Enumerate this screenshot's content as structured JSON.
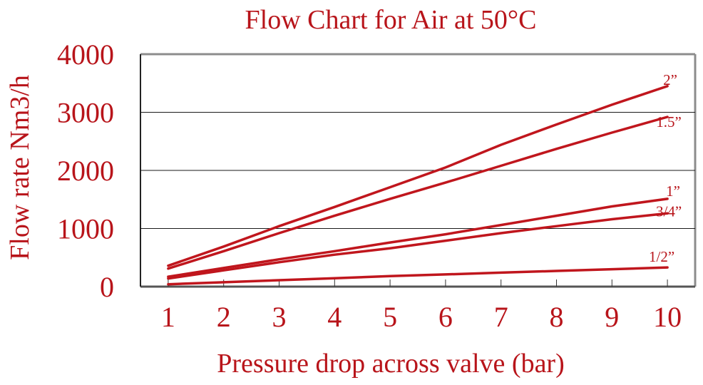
{
  "chart_data": {
    "type": "line",
    "title": "Flow Chart for Air at 50°C",
    "xlabel": "Pressure drop across valve (bar)",
    "ylabel": "Flow rate  Nm3/h",
    "xlim": [
      0.5,
      10.5
    ],
    "ylim": [
      0,
      4000
    ],
    "x_ticks": [
      "1",
      "2",
      "3",
      "4",
      "5",
      "6",
      "7",
      "8",
      "9",
      "10"
    ],
    "y_ticks": [
      "0",
      "1000",
      "2000",
      "3000",
      "4000"
    ],
    "grid": "horizontal",
    "line_color": "#c0161d",
    "text_color": "#b8141a",
    "series": [
      {
        "name": "2”",
        "x": [
          1,
          2,
          3,
          4,
          5,
          6,
          7,
          8,
          9,
          10
        ],
        "y": [
          360,
          690,
          1040,
          1370,
          1710,
          2050,
          2440,
          2790,
          3130,
          3450
        ]
      },
      {
        "name": "1.5”",
        "x": [
          1,
          2,
          3,
          4,
          5,
          6,
          7,
          8,
          9,
          10
        ],
        "y": [
          310,
          610,
          920,
          1220,
          1510,
          1790,
          2080,
          2370,
          2650,
          2920
        ]
      },
      {
        "name": "1”",
        "x": [
          1,
          2,
          3,
          4,
          5,
          6,
          7,
          8,
          9,
          10
        ],
        "y": [
          170,
          320,
          470,
          610,
          760,
          900,
          1060,
          1220,
          1380,
          1510
        ]
      },
      {
        "name": "3/4”",
        "x": [
          1,
          2,
          3,
          4,
          5,
          6,
          7,
          8,
          9,
          10
        ],
        "y": [
          140,
          280,
          420,
          550,
          660,
          790,
          920,
          1040,
          1160,
          1260
        ]
      },
      {
        "name": "1/2”",
        "x": [
          1,
          2,
          3,
          4,
          5,
          6,
          7,
          8,
          9,
          10
        ],
        "y": [
          40,
          75,
          110,
          145,
          180,
          210,
          240,
          270,
          300,
          330
        ]
      }
    ]
  }
}
